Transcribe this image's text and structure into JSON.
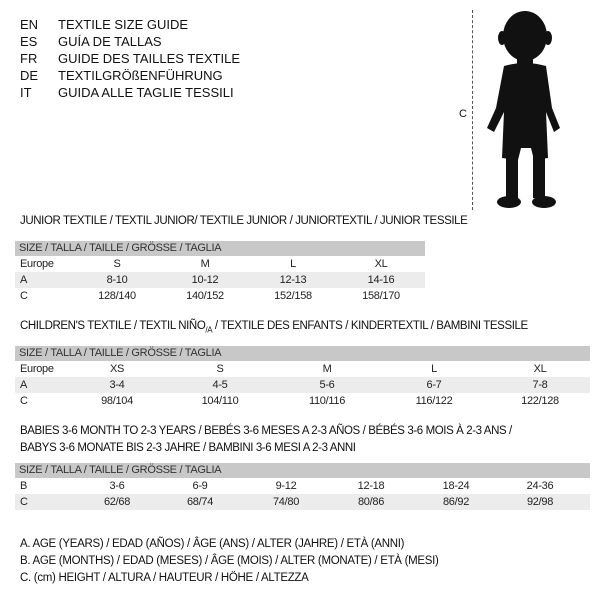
{
  "languages": [
    {
      "code": "EN",
      "text": "TEXTILE SIZE GUIDE"
    },
    {
      "code": "ES",
      "text": "GUÍA DE TALLAS"
    },
    {
      "code": "FR",
      "text": "GUIDE DES TAILLES TEXTILE"
    },
    {
      "code": "DE",
      "text": "TEXTILGRÖßENFÜHRUNG"
    },
    {
      "code": "IT",
      "text": "GUIDA ALLE TAGLIE TESSILI"
    }
  ],
  "figure": {
    "icon": "child-silhouette",
    "measure_label": "C"
  },
  "junior": {
    "title": "JUNIOR TEXTILE / TEXTIL JUNIOR/ TEXTILE JUNIOR / JUNIORTEXTIL / JUNIOR TESSILE",
    "header": "SIZE / TALLA / TAILLE / GRÖSSE / TAGLIA",
    "rows": [
      {
        "label": "Europe",
        "cells": [
          "S",
          "M",
          "L",
          "XL"
        ]
      },
      {
        "label": "A",
        "cells": [
          "8-10",
          "10-12",
          "12-13",
          "14-16"
        ]
      },
      {
        "label": "C",
        "cells": [
          "128/140",
          "140/152",
          "152/158",
          "158/170"
        ]
      }
    ]
  },
  "children": {
    "title_main": "CHILDREN'S TEXTILE / TEXTIL NIÑO",
    "title_sub": "/A",
    "title_rest": " / TEXTILE DES ENFANTS / KINDERTEXTIL / BAMBINI TESSILE",
    "header": "SIZE / TALLA / TAILLE / GRÖSSE / TAGLIA",
    "rows": [
      {
        "label": "Europe",
        "cells": [
          "XS",
          "S",
          "M",
          "L",
          "XL"
        ]
      },
      {
        "label": "A",
        "cells": [
          "3-4",
          "4-5",
          "5-6",
          "6-7",
          "7-8"
        ]
      },
      {
        "label": "C",
        "cells": [
          "98/104",
          "104/110",
          "110/116",
          "116/122",
          "122/128"
        ]
      }
    ]
  },
  "babies": {
    "title_line1": "BABIES 3-6 MONTH TO 2-3 YEARS / BEBÉS 3-6 MESES A 2-3 AÑOS / BÉBÉS 3-6 MOIS À 2-3 ANS /",
    "title_line2": "BABYS 3-6 MONATE BIS 2-3 JAHRE / BAMBINI 3-6 MESI A 2-3 ANNI",
    "header": "SIZE / TALLA / TAILLE / GRÖSSE / TAGLIA",
    "rows": [
      {
        "label": "B",
        "cells": [
          "3-6",
          "6-9",
          "9-12",
          "12-18",
          "18-24",
          "24-36"
        ]
      },
      {
        "label": "C",
        "cells": [
          "62/68",
          "68/74",
          "74/80",
          "80/86",
          "86/92",
          "92/98"
        ]
      }
    ]
  },
  "legend": [
    "A. AGE (YEARS) / EDAD (AÑOS) / ÂGE (ANS) / ALTER (JAHRE) / ETÀ (ANNI)",
    "B. AGE (MONTHS) / EDAD (MESES) / ÂGE (MOIS) / ALTER (MONATE) / ETÀ (MESI)",
    "C. (cm) HEIGHT / ALTURA / HAUTEUR / HÖHE / ALTEZZA"
  ]
}
